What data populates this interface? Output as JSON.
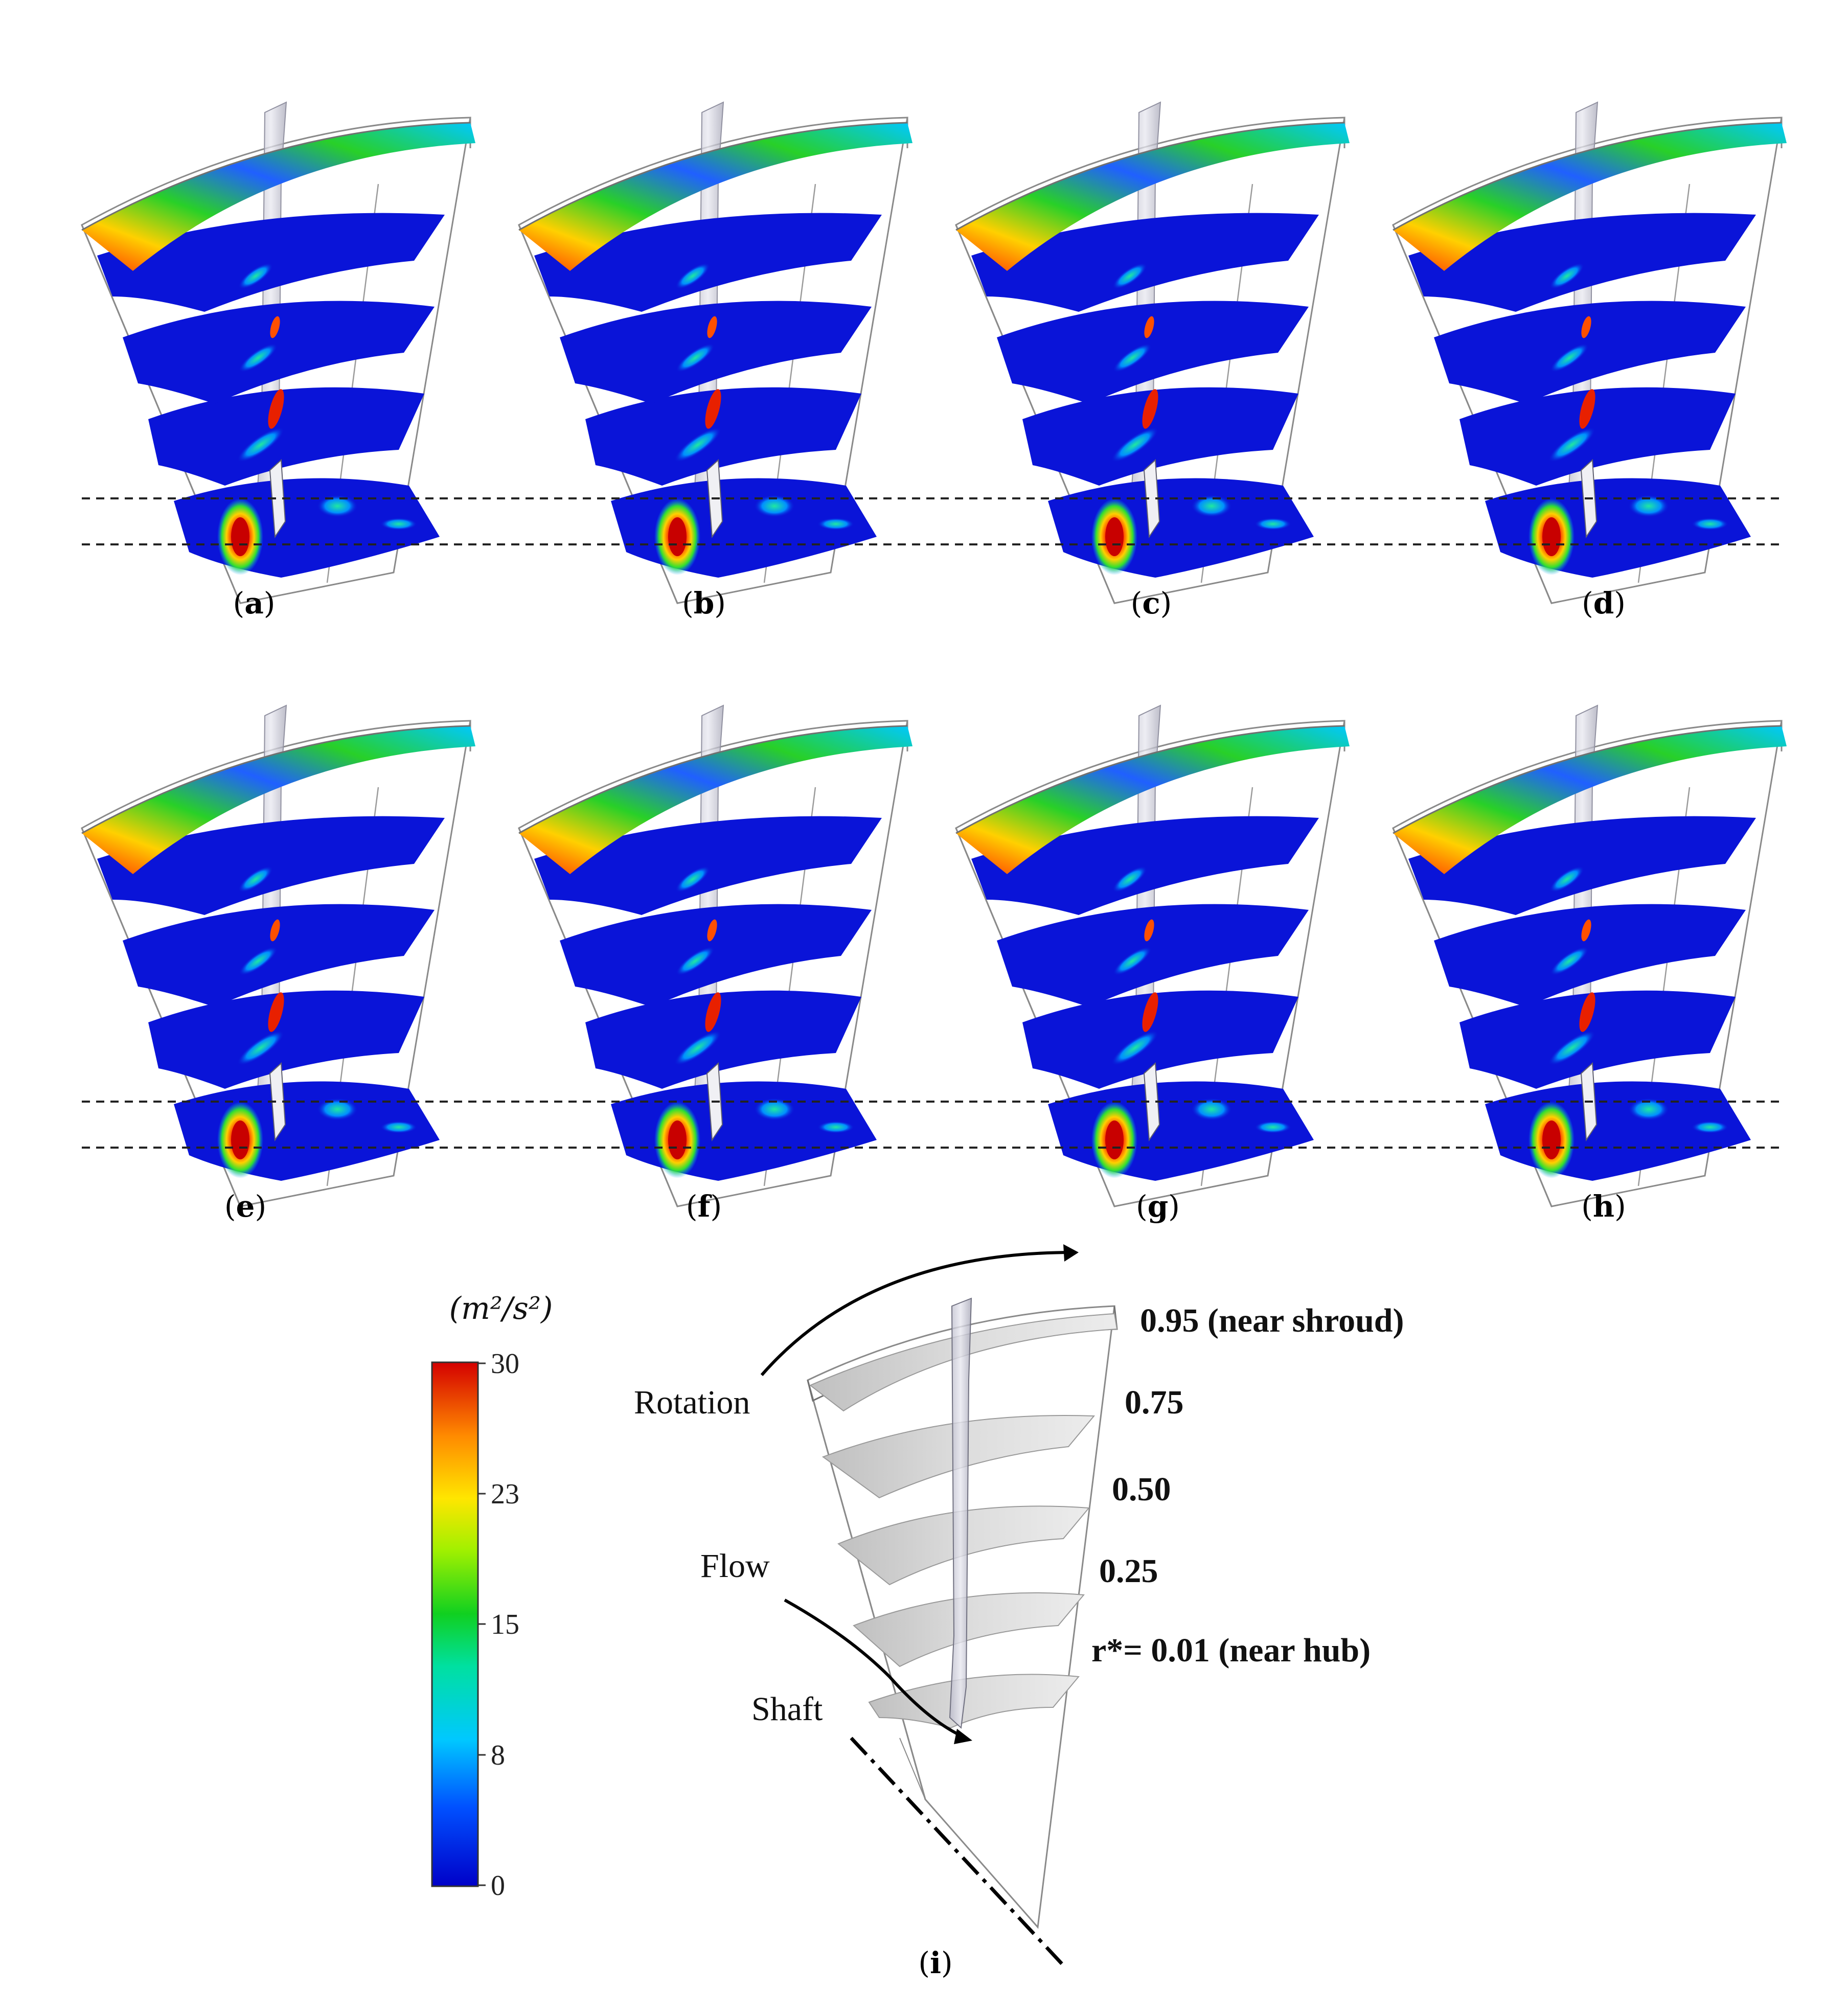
{
  "panels": [
    {
      "id": "a",
      "label": "a"
    },
    {
      "id": "b",
      "label": "b"
    },
    {
      "id": "c",
      "label": "c"
    },
    {
      "id": "d",
      "label": "d"
    },
    {
      "id": "e",
      "label": "e"
    },
    {
      "id": "f",
      "label": "f"
    },
    {
      "id": "g",
      "label": "g"
    },
    {
      "id": "h",
      "label": "h"
    }
  ],
  "schematic": {
    "label": "i",
    "rotation": "Rotation",
    "flow": "Flow",
    "shaft": "Shaft",
    "levels": [
      "0.95 (near shroud)",
      "0.75",
      "0.50",
      "0.25",
      "r*= 0.01 (near hub)"
    ]
  },
  "colorbar": {
    "unit": "(m²/s²)",
    "ticks": [
      "30",
      "23",
      "15",
      "8",
      "0"
    ],
    "min": 0,
    "max": 30,
    "colors": [
      "#0000c8",
      "#0060ff",
      "#00d0ff",
      "#00e08a",
      "#20d020",
      "#c8f000",
      "#ffe600",
      "#ff9a00",
      "#ff3000",
      "#d40000"
    ]
  },
  "colors": {
    "field_base": "#0a14d8",
    "hot_core": "#e80000",
    "blade_gray": "#c8c8d0",
    "frame_line": "#808080"
  }
}
